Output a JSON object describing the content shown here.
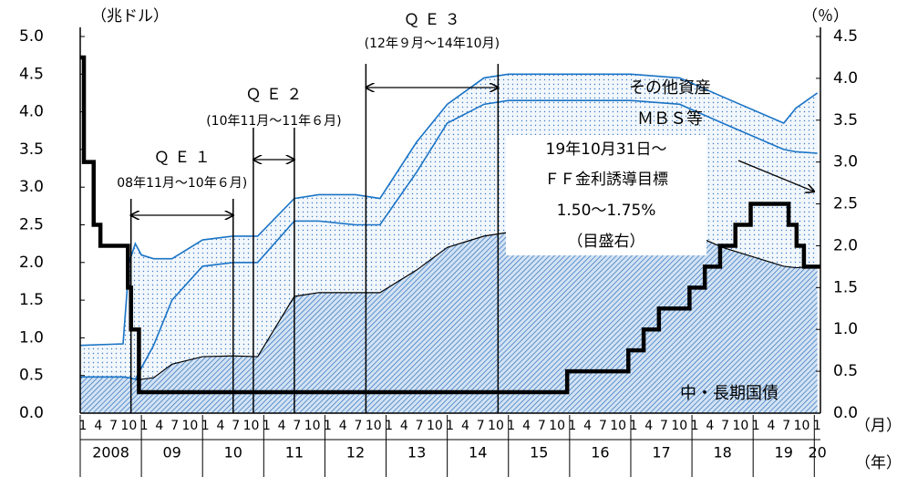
{
  "chart_data": {
    "type": "area",
    "ylabel": "（兆ドル）",
    "y2label": "（％）",
    "month_unit": "（月）",
    "year_unit": "（年）",
    "xlim": [
      2008,
      2020.1
    ],
    "ylim": [
      0,
      5
    ],
    "yticks": [
      {
        "value": 0,
        "label": "0.0"
      },
      0.5,
      {
        "value": 1,
        "label": "1.0"
      },
      1.5,
      {
        "value": 2,
        "label": "2.0"
      },
      2.5,
      {
        "value": 3,
        "label": "3.0"
      },
      3.5,
      {
        "value": 4,
        "label": "4.0"
      },
      4.5,
      {
        "value": 5,
        "label": "5.0"
      }
    ],
    "y2lim": [
      0,
      4.5
    ],
    "y2ticks": [
      {
        "value": 0,
        "label": "0.0"
      },
      0.5,
      {
        "value": 1,
        "label": "1.0"
      },
      1.5,
      {
        "value": 2,
        "label": "2.0"
      },
      2.5,
      {
        "value": 3,
        "label": "3.0"
      },
      3.5,
      {
        "value": 4,
        "label": "4.0"
      },
      4.5
    ],
    "month_labels": [
      "1",
      "4",
      "7",
      "10"
    ],
    "years": [
      {
        "value": 2008,
        "label": "2008"
      },
      {
        "value": 2009,
        "label": "09"
      },
      {
        "value": 2010,
        "label": "10"
      },
      {
        "value": 2011,
        "label": "11"
      },
      {
        "value": 2012,
        "label": "12"
      },
      {
        "value": 2013,
        "label": "13"
      },
      {
        "value": 2014,
        "label": "14"
      },
      {
        "value": 2015,
        "label": "15"
      },
      {
        "value": 2016,
        "label": "16"
      },
      {
        "value": 2017,
        "label": "17"
      },
      {
        "value": 2018,
        "label": "18"
      },
      {
        "value": 2019,
        "label": "19"
      },
      {
        "value": 2020,
        "label": "20"
      }
    ],
    "x": [
      2008,
      2008.7,
      2008.8,
      2008.9,
      2009,
      2009.2,
      2009.5,
      2010,
      2010.5,
      2010.9,
      2011.5,
      2011.9,
      2012.5,
      2012.9,
      2013.5,
      2014,
      2014.6,
      2015,
      2016,
      2017,
      2017.8,
      2018.5,
      2019.5,
      2019.7,
      2020.05
    ],
    "series": [
      {
        "name": "中・長期国債",
        "color": "#000000",
        "values": [
          0.48,
          0.48,
          0.47,
          0.45,
          0.45,
          0.47,
          0.65,
          0.75,
          0.76,
          0.75,
          1.55,
          1.6,
          1.6,
          1.6,
          1.9,
          2.2,
          2.35,
          2.4,
          2.45,
          2.45,
          2.45,
          2.2,
          1.95,
          1.93,
          1.95
        ]
      },
      {
        "name": "ＭＢＳ等",
        "color": "#1a74c6",
        "values": [
          0,
          0,
          0,
          0,
          0.15,
          0.43,
          0.85,
          1.2,
          1.24,
          1.25,
          1.0,
          0.95,
          0.9,
          0.9,
          1.3,
          1.65,
          1.75,
          1.75,
          1.7,
          1.7,
          1.65,
          1.65,
          1.55,
          1.54,
          1.5
        ]
      },
      {
        "name": "その他資産",
        "color": "#1a74c6",
        "values": [
          0.42,
          0.44,
          1.53,
          1.8,
          1.5,
          1.15,
          0.55,
          0.35,
          0.35,
          0.35,
          0.3,
          0.35,
          0.4,
          0.35,
          0.4,
          0.25,
          0.35,
          0.35,
          0.35,
          0.35,
          0.35,
          0.35,
          0.35,
          0.58,
          0.8
        ]
      }
    ],
    "rate": {
      "name": "ＦＦ金利誘導目標",
      "axis": "y2",
      "color": "#000000",
      "x": [
        2008,
        2008.06,
        2008.22,
        2008.33,
        2008.78,
        2008.83,
        2008.96,
        2015.96,
        2016.96,
        2017.21,
        2017.46,
        2017.96,
        2018.21,
        2018.46,
        2018.71,
        2018.96,
        2019.58,
        2019.71,
        2019.83,
        2020.1
      ],
      "values": [
        4.25,
        3.0,
        2.25,
        2.0,
        1.5,
        1.0,
        0.25,
        0.5,
        0.75,
        1.0,
        1.25,
        1.5,
        1.75,
        2.0,
        2.25,
        2.5,
        2.25,
        2.0,
        1.75,
        1.75
      ]
    },
    "rate_note": [
      "19年10月31日～",
      "1.50～1.75%",
      "（目盛右）"
    ],
    "annotations": [
      {
        "label": "Ｑ Ｅ １",
        "period": "08年11月～10年６月)",
        "start": 2008.83,
        "end": 2010.5
      },
      {
        "label": "Ｑ Ｅ ２",
        "period": "(10年11月～11年６月)",
        "start": 2010.83,
        "end": 2011.5
      },
      {
        "label": "Ｑ Ｅ ３",
        "period": "(12年９月～14年10月)",
        "start": 2012.67,
        "end": 2014.83
      }
    ]
  }
}
